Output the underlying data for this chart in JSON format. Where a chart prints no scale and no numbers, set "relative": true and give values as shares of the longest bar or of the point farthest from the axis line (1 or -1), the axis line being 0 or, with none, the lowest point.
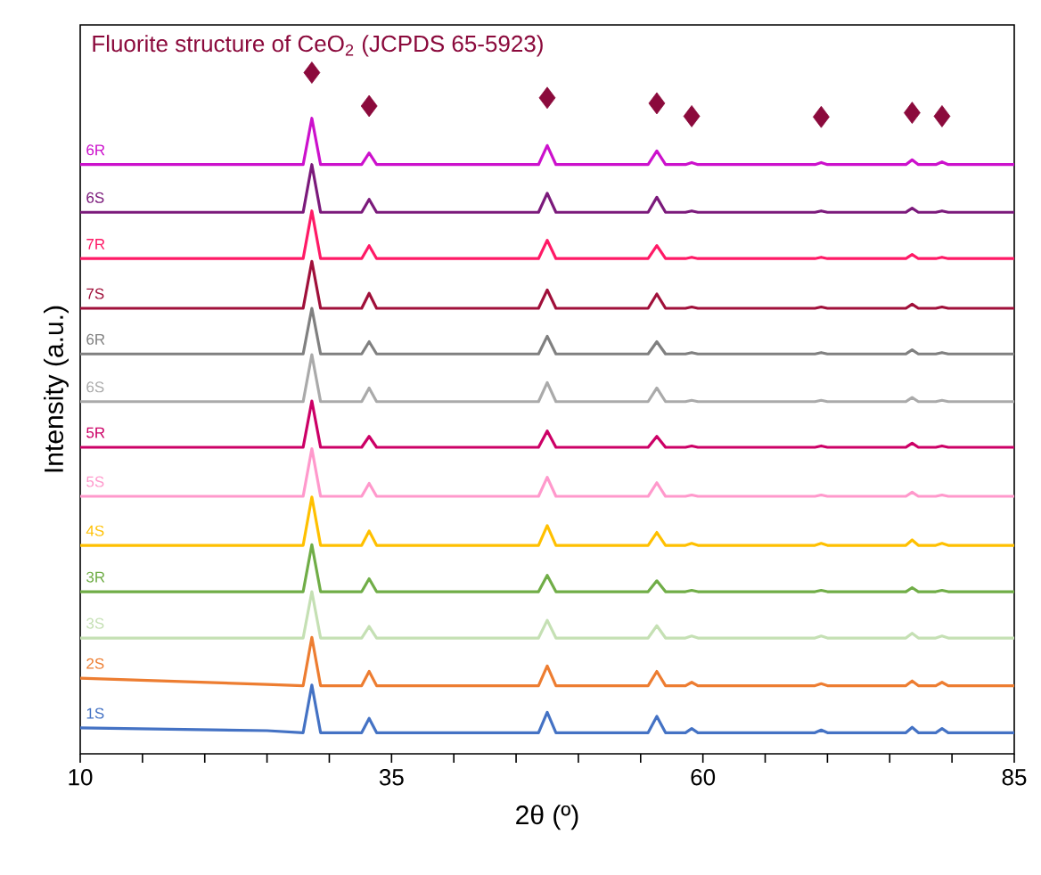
{
  "chart_data": {
    "type": "line",
    "title": "Fluorite structure of CeO$_{2}$ (JCPDS 65-5923)",
    "xlabel": "2θ (º)",
    "ylabel": "Intensity (a.u.)",
    "relative": true,
    "marker": "none",
    "xlim": [
      10,
      85
    ],
    "xticks": [
      10,
      {
        "value": 15,
        "label": null
      },
      {
        "value": 20,
        "label": null
      },
      {
        "value": 25,
        "label": null
      },
      {
        "value": 30,
        "label": null
      },
      35,
      {
        "value": 40,
        "label": null
      },
      {
        "value": 45,
        "label": null
      },
      {
        "value": 50,
        "label": null
      },
      {
        "value": 55,
        "label": null
      },
      60,
      {
        "value": 65,
        "label": null
      },
      {
        "value": 70,
        "label": null
      },
      {
        "value": 75,
        "label": null
      },
      {
        "value": 80,
        "label": null
      },
      85
    ],
    "x": [
      10,
      25,
      27.9,
      28.6,
      29.3,
      32.6,
      33.2,
      33.8,
      46.8,
      47.5,
      48.2,
      55.6,
      56.3,
      57.0,
      58.6,
      59.1,
      59.6,
      69.0,
      69.5,
      70.0,
      76.3,
      76.8,
      77.3,
      78.7,
      79.2,
      79.7,
      85
    ],
    "series": [
      {
        "type": "scatter",
        "marker": "diamond",
        "color": "#8b0a3c",
        "x": [
          28.6,
          33.2,
          47.5,
          56.3,
          59.1,
          69.5,
          76.8,
          79.2
        ],
        "values": [
          1.0,
          0.951,
          0.963,
          0.955,
          0.936,
          0.935,
          0.941,
          0.936
        ]
      },
      {
        "name": "6R",
        "color": "#cc11cc",
        "values": [
          0.865,
          0.865,
          0.865,
          0.933,
          0.865,
          0.865,
          0.882,
          0.865,
          0.865,
          0.893,
          0.865,
          0.865,
          0.885,
          0.865,
          0.865,
          0.868,
          0.865,
          0.865,
          0.868,
          0.865,
          0.865,
          0.872,
          0.865,
          0.865,
          0.869,
          0.865,
          0.865
        ]
      },
      {
        "name": "6S",
        "color": "#7b1a7b",
        "values": [
          0.795,
          0.795,
          0.795,
          0.865,
          0.795,
          0.795,
          0.814,
          0.795,
          0.795,
          0.823,
          0.795,
          0.795,
          0.817,
          0.795,
          0.795,
          0.797,
          0.795,
          0.795,
          0.797,
          0.795,
          0.795,
          0.801,
          0.795,
          0.795,
          0.797,
          0.795,
          0.795
        ]
      },
      {
        "name": "7R",
        "color": "#ff1a66",
        "values": [
          0.727,
          0.727,
          0.727,
          0.797,
          0.727,
          0.727,
          0.746,
          0.727,
          0.727,
          0.754,
          0.727,
          0.727,
          0.746,
          0.727,
          0.727,
          0.729,
          0.727,
          0.727,
          0.729,
          0.727,
          0.727,
          0.733,
          0.727,
          0.727,
          0.729,
          0.727,
          0.727
        ]
      },
      {
        "name": "7S",
        "color": "#a0103a",
        "values": [
          0.654,
          0.654,
          0.654,
          0.723,
          0.654,
          0.654,
          0.676,
          0.654,
          0.654,
          0.681,
          0.654,
          0.654,
          0.675,
          0.654,
          0.654,
          0.656,
          0.654,
          0.654,
          0.656,
          0.654,
          0.654,
          0.66,
          0.654,
          0.654,
          0.656,
          0.654,
          0.654
        ]
      },
      {
        "name": "6R",
        "color": "#808080",
        "values": [
          0.587,
          0.587,
          0.587,
          0.654,
          0.587,
          0.587,
          0.605,
          0.587,
          0.587,
          0.613,
          0.587,
          0.587,
          0.605,
          0.587,
          0.587,
          0.589,
          0.587,
          0.587,
          0.589,
          0.587,
          0.587,
          0.593,
          0.587,
          0.587,
          0.589,
          0.587,
          0.587
        ]
      },
      {
        "name": "6S",
        "color": "#aaaaaa",
        "values": [
          0.517,
          0.517,
          0.517,
          0.586,
          0.517,
          0.517,
          0.537,
          0.517,
          0.517,
          0.545,
          0.517,
          0.517,
          0.537,
          0.517,
          0.517,
          0.519,
          0.517,
          0.517,
          0.519,
          0.517,
          0.517,
          0.523,
          0.517,
          0.517,
          0.519,
          0.517,
          0.517
        ]
      },
      {
        "name": "5R",
        "color": "#cc0066",
        "values": [
          0.45,
          0.45,
          0.45,
          0.518,
          0.45,
          0.45,
          0.466,
          0.45,
          0.45,
          0.474,
          0.45,
          0.45,
          0.466,
          0.45,
          0.45,
          0.452,
          0.45,
          0.45,
          0.452,
          0.45,
          0.45,
          0.456,
          0.45,
          0.45,
          0.452,
          0.45,
          0.45
        ]
      },
      {
        "name": "5S",
        "color": "#ff99cc",
        "values": [
          0.378,
          0.378,
          0.378,
          0.448,
          0.378,
          0.378,
          0.397,
          0.378,
          0.378,
          0.406,
          0.378,
          0.378,
          0.398,
          0.378,
          0.378,
          0.38,
          0.378,
          0.378,
          0.38,
          0.378,
          0.378,
          0.384,
          0.378,
          0.378,
          0.38,
          0.378,
          0.378
        ]
      },
      {
        "name": "4S",
        "color": "#ffc000",
        "values": [
          0.306,
          0.306,
          0.306,
          0.377,
          0.306,
          0.306,
          0.327,
          0.306,
          0.306,
          0.335,
          0.306,
          0.306,
          0.325,
          0.306,
          0.306,
          0.309,
          0.306,
          0.306,
          0.309,
          0.306,
          0.306,
          0.314,
          0.306,
          0.306,
          0.309,
          0.306,
          0.306
        ]
      },
      {
        "name": "3R",
        "color": "#70ad47",
        "values": [
          0.238,
          0.238,
          0.238,
          0.307,
          0.238,
          0.238,
          0.257,
          0.238,
          0.238,
          0.262,
          0.238,
          0.238,
          0.254,
          0.238,
          0.238,
          0.24,
          0.238,
          0.238,
          0.24,
          0.238,
          0.238,
          0.244,
          0.238,
          0.238,
          0.24,
          0.238,
          0.238
        ]
      },
      {
        "name": "3S",
        "color": "#c5e0b4",
        "values": [
          0.17,
          0.17,
          0.17,
          0.238,
          0.17,
          0.17,
          0.187,
          0.17,
          0.17,
          0.196,
          0.17,
          0.17,
          0.188,
          0.17,
          0.17,
          0.173,
          0.17,
          0.17,
          0.173,
          0.17,
          0.17,
          0.177,
          0.17,
          0.17,
          0.173,
          0.17,
          0.17
        ]
      },
      {
        "name": "2S",
        "color": "#ed7d31",
        "values": [
          0.111,
          0.102,
          0.1,
          0.171,
          0.1,
          0.1,
          0.121,
          0.1,
          0.1,
          0.129,
          0.1,
          0.1,
          0.121,
          0.1,
          0.1,
          0.105,
          0.1,
          0.1,
          0.103,
          0.1,
          0.1,
          0.107,
          0.1,
          0.1,
          0.105,
          0.1,
          0.1
        ]
      },
      {
        "name": "1S",
        "color": "#4472c4",
        "values": [
          0.038,
          0.034,
          0.031,
          0.101,
          0.031,
          0.031,
          0.052,
          0.031,
          0.031,
          0.061,
          0.031,
          0.031,
          0.055,
          0.031,
          0.031,
          0.037,
          0.031,
          0.031,
          0.035,
          0.031,
          0.031,
          0.039,
          0.031,
          0.031,
          0.037,
          0.031,
          0.031
        ]
      }
    ]
  }
}
